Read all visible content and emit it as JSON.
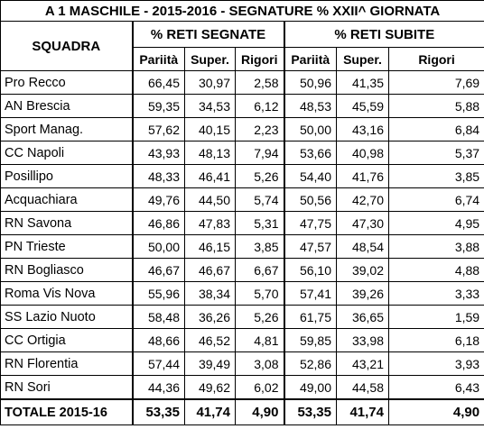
{
  "title": "A 1 MASCHILE - 2015-2016 - SEGNATURE %  XXII^ GIORNATA",
  "header": {
    "squadra": "SQUADRA",
    "group_segnate": "% RETI SEGNATE",
    "group_subite": "% RETI SUBITE",
    "subcols": [
      "Pariità",
      "Super.",
      "Rigori",
      "Pariità",
      "Super.",
      "Rigori"
    ]
  },
  "rows": [
    {
      "team": "Pro Recco",
      "v": [
        "66,45",
        "30,97",
        "2,58",
        "50,96",
        "41,35",
        "7,69"
      ]
    },
    {
      "team": "AN Brescia",
      "v": [
        "59,35",
        "34,53",
        "6,12",
        "48,53",
        "45,59",
        "5,88"
      ]
    },
    {
      "team": "Sport Manag.",
      "v": [
        "57,62",
        "40,15",
        "2,23",
        "50,00",
        "43,16",
        "6,84"
      ]
    },
    {
      "team": "CC Napoli",
      "v": [
        "43,93",
        "48,13",
        "7,94",
        "53,66",
        "40,98",
        "5,37"
      ]
    },
    {
      "team": "Posillipo",
      "v": [
        "48,33",
        "46,41",
        "5,26",
        "54,40",
        "41,76",
        "3,85"
      ]
    },
    {
      "team": "Acquachiara",
      "v": [
        "49,76",
        "44,50",
        "5,74",
        "50,56",
        "42,70",
        "6,74"
      ]
    },
    {
      "team": "RN Savona",
      "v": [
        "46,86",
        "47,83",
        "5,31",
        "47,75",
        "47,30",
        "4,95"
      ]
    },
    {
      "team": "PN Trieste",
      "v": [
        "50,00",
        "46,15",
        "3,85",
        "47,57",
        "48,54",
        "3,88"
      ]
    },
    {
      "team": "RN Bogliasco",
      "v": [
        "46,67",
        "46,67",
        "6,67",
        "56,10",
        "39,02",
        "4,88"
      ]
    },
    {
      "team": "Roma Vis Nova",
      "v": [
        "55,96",
        "38,34",
        "5,70",
        "57,41",
        "39,26",
        "3,33"
      ]
    },
    {
      "team": "SS Lazio Nuoto",
      "v": [
        "58,48",
        "36,26",
        "5,26",
        "61,75",
        "36,65",
        "1,59"
      ]
    },
    {
      "team": "CC Ortigia",
      "v": [
        "48,66",
        "46,52",
        "4,81",
        "59,85",
        "33,98",
        "6,18"
      ]
    },
    {
      "team": "RN Florentia",
      "v": [
        "57,44",
        "39,49",
        "3,08",
        "52,86",
        "43,21",
        "3,93"
      ]
    },
    {
      "team": "RN Sori",
      "v": [
        "44,36",
        "49,62",
        "6,02",
        "49,00",
        "44,58",
        "6,43"
      ]
    }
  ],
  "total": {
    "team": "TOTALE 2015-16",
    "v": [
      "53,35",
      "41,74",
      "4,90",
      "53,35",
      "41,74",
      "4,90"
    ]
  }
}
